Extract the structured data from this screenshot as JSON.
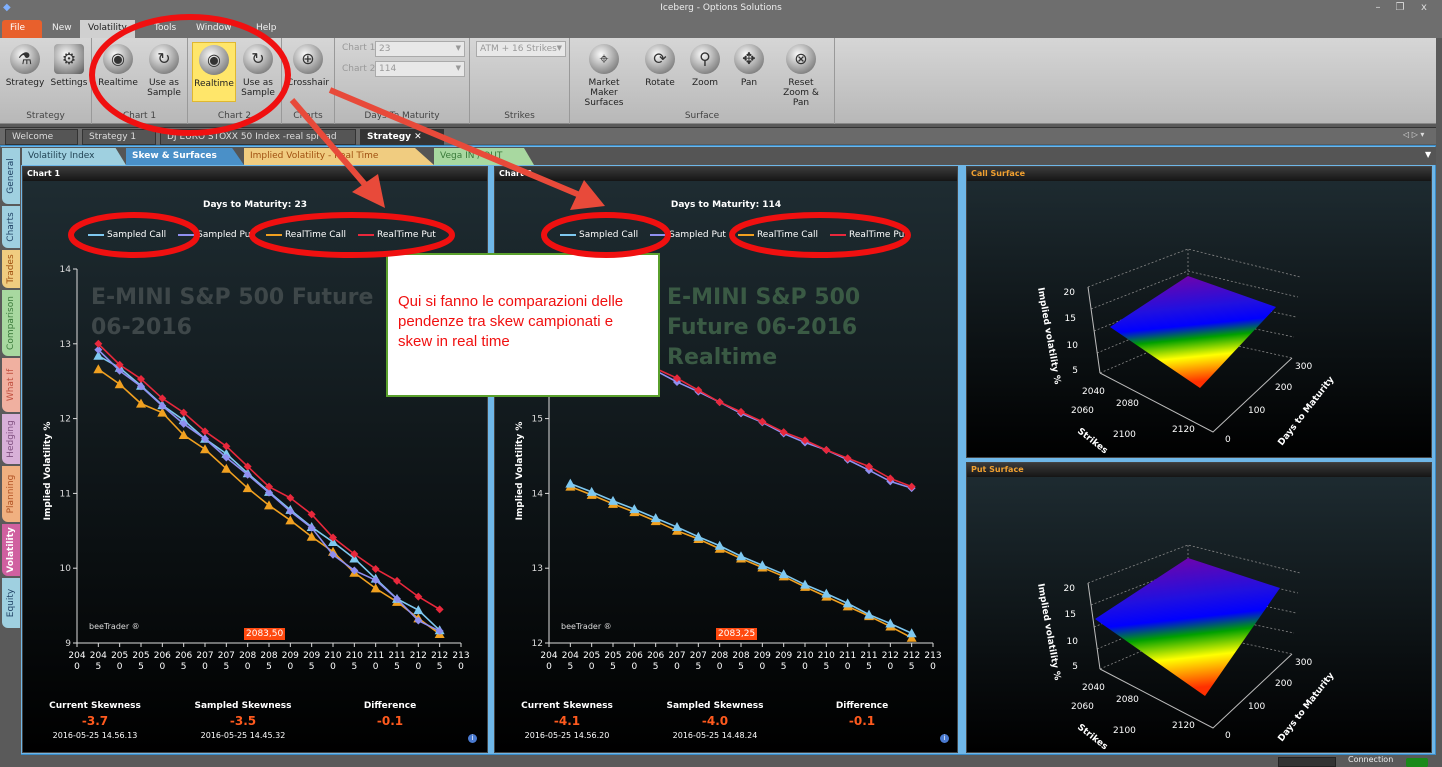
{
  "app": {
    "title": "Iceberg - Options Solutions",
    "minimize": "–",
    "restore": "❐",
    "close": "x"
  },
  "menu": [
    "File",
    "New",
    "Volatility",
    "Tools",
    "Window",
    "Help"
  ],
  "ribbon": {
    "groups": {
      "strategy": "Strategy",
      "chart1": "Chart 1",
      "chart2": "Chart 2",
      "charts": "Charts",
      "dtm": "Days To Maturity",
      "strikes": "Strikes",
      "surface": "Surface"
    },
    "strategy": "Strategy",
    "settings": "Settings",
    "chart1_realtime": "Realtime",
    "chart1_sample": "Use as Sample",
    "chart2_realtime": "Realtime",
    "chart2_sample": "Use as Sample",
    "crosshair": "Crosshair",
    "dtm_chart1_label": "Chart 1",
    "dtm_chart1_value": "23",
    "dtm_chart2_label": "Chart 2",
    "dtm_chart2_value": "114",
    "strikes_value": "ATM + 16 Strikes",
    "mm_surfaces": "Market Maker Surfaces",
    "rotate": "Rotate",
    "zoom": "Zoom",
    "pan": "Pan",
    "reset": "Reset Zoom & Pan"
  },
  "doc_tabs": [
    "Welcome",
    "Strategy 1",
    "DJ EURO STOXX 50 Index -real spread",
    "Strategy"
  ],
  "sub_tabs": [
    "Volatility Index",
    "Skew & Surfaces",
    "Implied Volatility - Real Time",
    "Vega IN / OUT"
  ],
  "side_tabs": [
    "General",
    "Charts",
    "Trades",
    "Comparison",
    "What If",
    "Hedging",
    "Planning",
    "Volatility",
    "Equity"
  ],
  "colors": {
    "sampled_call": "#7ec8f0",
    "sampled_put": "#8f8ff0",
    "realtime_call": "#f0a020",
    "realtime_put": "#e8283c",
    "accent": "#ff5a1e",
    "annotation": "#f01010"
  },
  "legend": [
    "Sampled Call",
    "Sampled Put",
    "RealTime Call",
    "RealTime Put"
  ],
  "brand": "beeTrader ®",
  "panels": {
    "chart1": {
      "title": "Chart 1",
      "dtm": "Days to Maturity: 23",
      "watermark": "E-MINI S&P 500 Future 06-2016",
      "crosshair": "2083,50",
      "stats": {
        "current_label": "Current Skewness",
        "current": "-3.7",
        "current_time": "2016-05-25 14.56.13",
        "sampled_label": "Sampled Skewness",
        "sampled": "-3.5",
        "sampled_time": "2016-05-25 14.45.32",
        "diff_label": "Difference",
        "diff": "-0.1"
      }
    },
    "chart2": {
      "title": "Chart 2",
      "dtm": "Days to Maturity: 114",
      "watermark": "E-MINI S&P 500 Future 06-2016 Realtime",
      "crosshair": "2083,25",
      "stats": {
        "current_label": "Current Skewness",
        "current": "-4.1",
        "current_time": "2016-05-25 14.56.20",
        "sampled_label": "Sampled Skewness",
        "sampled": "-4.0",
        "sampled_time": "2016-05-25 14.48.24",
        "diff_label": "Difference",
        "diff": "-0.1"
      }
    },
    "call_surface": {
      "title": "Call Surface"
    },
    "put_surface": {
      "title": "Put Surface"
    }
  },
  "surface_axes": {
    "z_label": "Implied volatility %",
    "z_ticks": [
      "5",
      "10",
      "15",
      "20"
    ],
    "x_label": "Strikes",
    "x_ticks": [
      "2040",
      "2060",
      "2080",
      "2100",
      "2120"
    ],
    "y_label": "Days to Maturity",
    "y_ticks": [
      "0",
      "100",
      "200",
      "300"
    ]
  },
  "annotation": {
    "text": "Qui si fanno le comparazioni delle pendenze tra skew campionati e skew in real time"
  },
  "status": {
    "connection": "Connection"
  },
  "chart_data": [
    {
      "type": "line",
      "ylabel": "Implied Volatility %",
      "ylim": [
        9,
        14
      ],
      "yticks": [
        9,
        10,
        11,
        12,
        13,
        14
      ],
      "xlim": [
        2040,
        2130
      ],
      "x": [
        2045,
        2050,
        2055,
        2060,
        2065,
        2070,
        2075,
        2080,
        2085,
        2090,
        2095,
        2100,
        2105,
        2110,
        2115,
        2120,
        2125
      ],
      "series": [
        {
          "name": "Sampled Call",
          "values": [
            12.84,
            12.68,
            12.44,
            12.18,
            11.98,
            11.73,
            11.53,
            11.27,
            11.02,
            10.78,
            10.55,
            10.35,
            10.13,
            9.86,
            9.59,
            9.44,
            9.17
          ]
        },
        {
          "name": "Sampled Put",
          "values": [
            12.92,
            12.64,
            12.43,
            12.17,
            11.93,
            11.73,
            11.48,
            11.25,
            11.01,
            10.76,
            10.54,
            10.18,
            9.97,
            9.84,
            9.59,
            9.3,
            9.16
          ]
        },
        {
          "name": "RealTime Call",
          "values": [
            12.66,
            12.46,
            12.2,
            12.08,
            11.78,
            11.59,
            11.33,
            11.07,
            10.84,
            10.64,
            10.42,
            10.22,
            9.94,
            9.73,
            9.55,
            9.33,
            9.12
          ]
        },
        {
          "name": "RealTime Put",
          "values": [
            13.0,
            12.72,
            12.53,
            12.27,
            12.08,
            11.83,
            11.63,
            11.36,
            11.09,
            10.94,
            10.72,
            10.41,
            10.19,
            9.99,
            9.83,
            9.62,
            9.45
          ]
        }
      ]
    },
    {
      "type": "line",
      "ylabel": "Implied Volatility %",
      "ylim": [
        12,
        17
      ],
      "yticks": [
        12,
        13,
        14,
        15
      ],
      "xlim": [
        2040,
        2130
      ],
      "x": [
        2045,
        2050,
        2055,
        2060,
        2065,
        2070,
        2075,
        2080,
        2085,
        2090,
        2095,
        2100,
        2105,
        2110,
        2115,
        2120,
        2125
      ],
      "series": [
        {
          "name": "Sampled Call",
          "values": [
            14.13,
            14.02,
            13.9,
            13.79,
            13.67,
            13.55,
            13.42,
            13.3,
            13.16,
            13.04,
            12.92,
            12.78,
            12.66,
            12.53,
            12.38,
            12.26,
            12.13
          ]
        },
        {
          "name": "Sampled Put",
          "values": [
            16.16,
            16.03,
            15.9,
            15.77,
            15.64,
            15.49,
            15.36,
            15.22,
            15.07,
            14.95,
            14.8,
            14.68,
            14.58,
            14.45,
            14.31,
            14.16,
            14.07
          ]
        },
        {
          "name": "RealTime Call",
          "values": [
            14.09,
            13.98,
            13.86,
            13.75,
            13.63,
            13.5,
            13.39,
            13.26,
            13.13,
            13.01,
            12.89,
            12.75,
            12.62,
            12.49,
            12.36,
            12.22,
            12.07
          ]
        },
        {
          "name": "RealTime Put",
          "values": [
            16.19,
            16.06,
            15.93,
            15.8,
            15.67,
            15.54,
            15.38,
            15.22,
            15.09,
            14.96,
            14.82,
            14.71,
            14.58,
            14.47,
            14.36,
            14.2,
            14.09
          ]
        }
      ]
    }
  ]
}
